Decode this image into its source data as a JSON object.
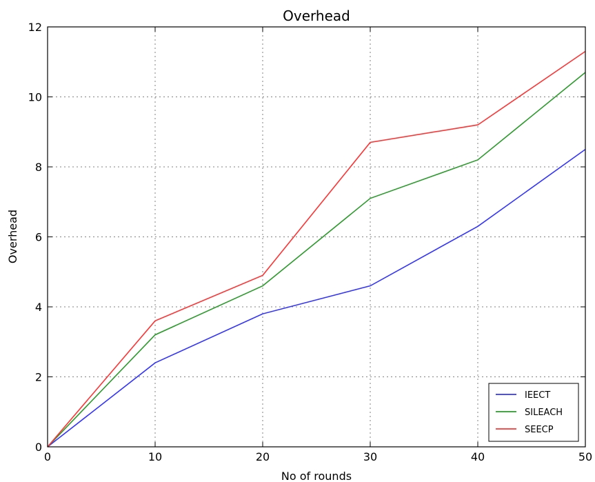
{
  "chart_data": {
    "type": "line",
    "title": "Overhead",
    "xlabel": "No of rounds",
    "ylabel": "Overhead",
    "xlim": [
      0,
      50
    ],
    "ylim": [
      0,
      12
    ],
    "x_ticks": [
      "0",
      "10",
      "20",
      "30",
      "40",
      "50"
    ],
    "y_ticks": [
      "0",
      "2",
      "4",
      "6",
      "8",
      "10",
      "12"
    ],
    "grid": true,
    "legend_position": "bottom-right",
    "x": [
      0,
      10,
      20,
      30,
      40,
      50
    ],
    "series": [
      {
        "name": "IEECT",
        "color": "#3333ff",
        "values": [
          0,
          2.4,
          3.8,
          4.6,
          6.3,
          8.5
        ]
      },
      {
        "name": "SILEACH",
        "color": "#2a9a2a",
        "values": [
          0,
          3.2,
          4.6,
          7.1,
          8.2,
          10.7
        ]
      },
      {
        "name": "SEECP",
        "color": "#ff3333",
        "values": [
          0,
          3.6,
          4.9,
          8.7,
          9.2,
          11.3
        ]
      }
    ]
  }
}
